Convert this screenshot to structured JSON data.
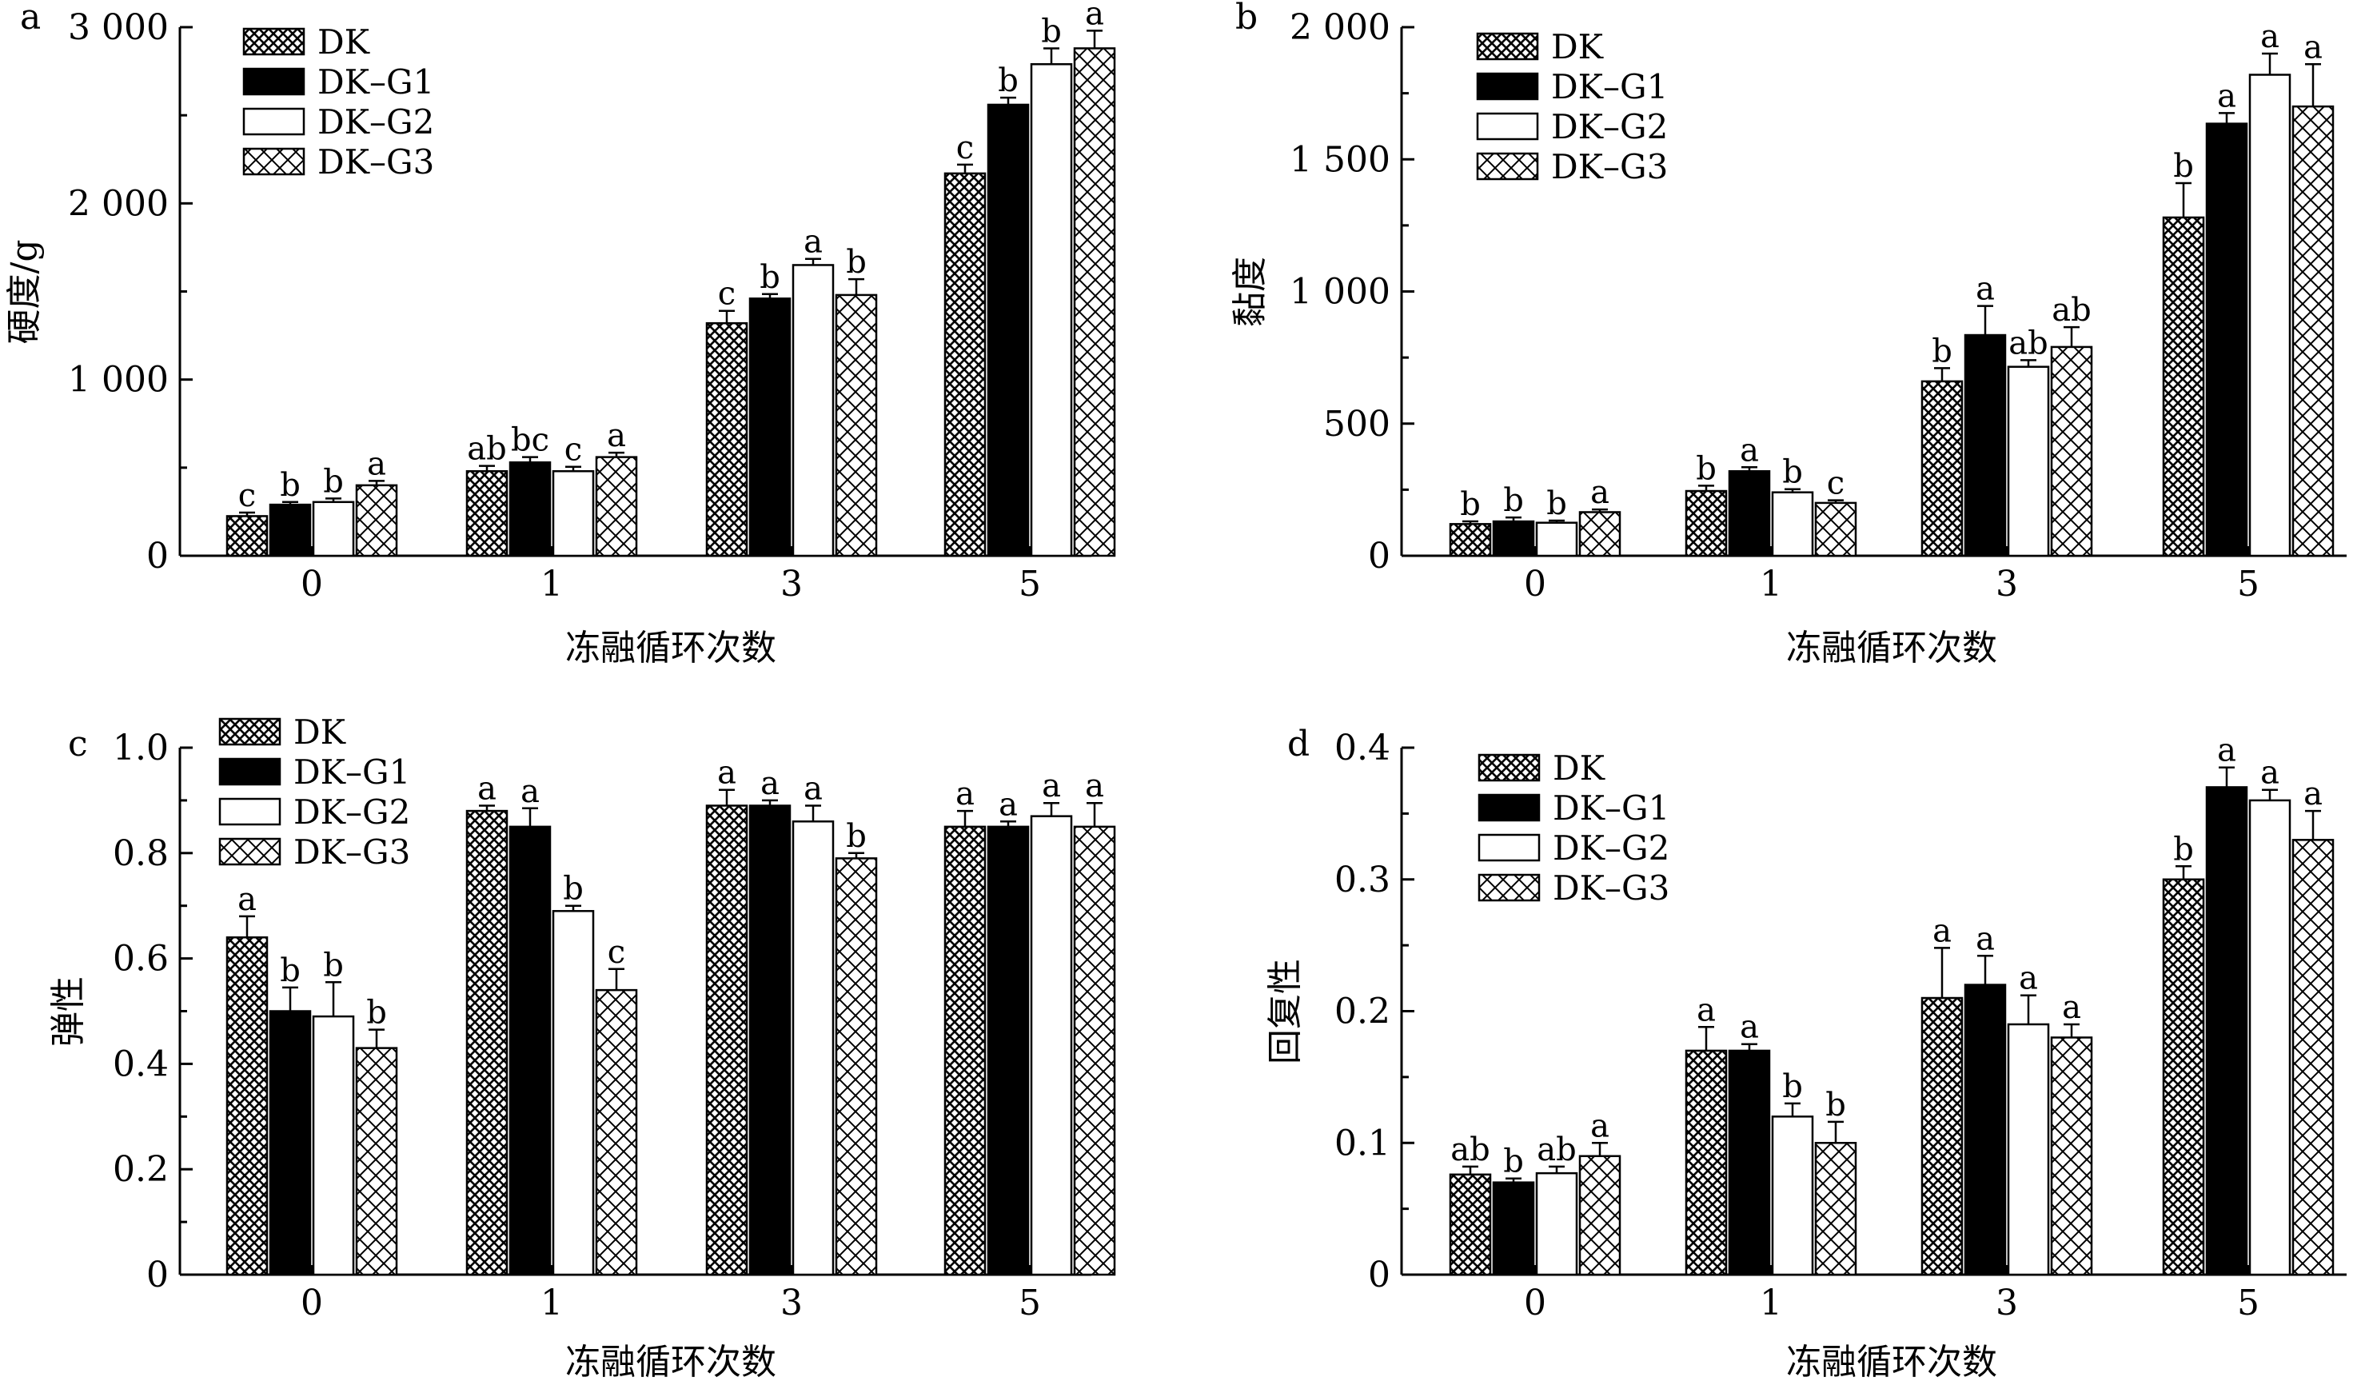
{
  "legend": [
    "DK",
    "DK–G1",
    "DK–G2",
    "DK–G3"
  ],
  "series_colors": {
    "black": "#000000",
    "white": "#ffffff"
  },
  "chart_data": [
    {
      "panel": "a",
      "type": "bar",
      "categories": [
        "0",
        "1",
        "3",
        "5"
      ],
      "xlabel": "冻融循环次数",
      "ylabel": "硬度/g",
      "ylim": [
        0,
        3000
      ],
      "yticks": [
        0,
        1000,
        2000,
        3000
      ],
      "ytick_labels": [
        "0",
        "1 000",
        "2 000",
        "3 000"
      ],
      "legend_position": "top-left",
      "series": [
        {
          "name": "DK",
          "values": [
            225,
            480,
            1320,
            2170
          ],
          "errors": [
            20,
            30,
            70,
            50
          ],
          "letters": [
            "c",
            "ab",
            "c",
            "c"
          ]
        },
        {
          "name": "DK–G1",
          "values": [
            290,
            530,
            1460,
            2560
          ],
          "errors": [
            15,
            30,
            25,
            40
          ],
          "letters": [
            "b",
            "bc",
            "b",
            "b"
          ]
        },
        {
          "name": "DK–G2",
          "values": [
            305,
            480,
            1650,
            2790
          ],
          "errors": [
            20,
            25,
            35,
            90
          ],
          "letters": [
            "b",
            "c",
            "a",
            "b"
          ]
        },
        {
          "name": "DK–G3",
          "values": [
            400,
            560,
            1480,
            2880
          ],
          "errors": [
            25,
            25,
            90,
            100
          ],
          "letters": [
            "a",
            "a",
            "b",
            "a"
          ]
        }
      ]
    },
    {
      "panel": "b",
      "type": "bar",
      "categories": [
        "0",
        "1",
        "3",
        "5"
      ],
      "xlabel": "冻融循环次数",
      "ylabel": "黏度",
      "ylim": [
        0,
        2000
      ],
      "yticks": [
        0,
        500,
        1000,
        1500,
        2000
      ],
      "ytick_labels": [
        "0",
        "500",
        "1 000",
        "1 500",
        "2 000"
      ],
      "legend_position": "top-left",
      "series": [
        {
          "name": "DK",
          "values": [
            120,
            245,
            660,
            1280
          ],
          "errors": [
            10,
            20,
            50,
            130
          ],
          "letters": [
            "b",
            "b",
            "b",
            "b"
          ]
        },
        {
          "name": "DK–G1",
          "values": [
            130,
            320,
            835,
            1635
          ],
          "errors": [
            15,
            15,
            110,
            40
          ],
          "letters": [
            "b",
            "a",
            "a",
            "a"
          ]
        },
        {
          "name": "DK–G2",
          "values": [
            125,
            240,
            715,
            1820
          ],
          "errors": [
            8,
            12,
            25,
            80
          ],
          "letters": [
            "b",
            "b",
            "ab",
            "a"
          ]
        },
        {
          "name": "DK–G3",
          "values": [
            165,
            200,
            790,
            1700
          ],
          "errors": [
            10,
            10,
            75,
            160
          ],
          "letters": [
            "a",
            "c",
            "ab",
            "a"
          ]
        }
      ]
    },
    {
      "panel": "c",
      "type": "bar",
      "categories": [
        "0",
        "1",
        "3",
        "5"
      ],
      "xlabel": "冻融循环次数",
      "ylabel": "弹性",
      "ylim": [
        0,
        1.0
      ],
      "yticks": [
        0,
        0.2,
        0.4,
        0.6,
        0.8,
        1.0
      ],
      "ytick_labels": [
        "0",
        "0.2",
        "0.4",
        "0.6",
        "0.8",
        "1.0"
      ],
      "legend_position": "top-left",
      "series": [
        {
          "name": "DK",
          "values": [
            0.64,
            0.88,
            0.89,
            0.85
          ],
          "errors": [
            0.04,
            0.01,
            0.03,
            0.03
          ],
          "letters": [
            "a",
            "a",
            "a",
            "a"
          ]
        },
        {
          "name": "DK–G1",
          "values": [
            0.5,
            0.85,
            0.89,
            0.85
          ],
          "errors": [
            0.045,
            0.035,
            0.01,
            0.01
          ],
          "letters": [
            "b",
            "a",
            "a",
            "a"
          ]
        },
        {
          "name": "DK–G2",
          "values": [
            0.49,
            0.69,
            0.86,
            0.87
          ],
          "errors": [
            0.065,
            0.01,
            0.03,
            0.025
          ],
          "letters": [
            "b",
            "b",
            "a",
            "a"
          ]
        },
        {
          "name": "DK–G3",
          "values": [
            0.43,
            0.54,
            0.79,
            0.85
          ],
          "errors": [
            0.035,
            0.04,
            0.01,
            0.045
          ],
          "letters": [
            "b",
            "c",
            "b",
            "a"
          ]
        }
      ]
    },
    {
      "panel": "d",
      "type": "bar",
      "categories": [
        "0",
        "1",
        "3",
        "5"
      ],
      "xlabel": "冻融循环次数",
      "ylabel": "回复性",
      "ylim": [
        0,
        0.4
      ],
      "yticks": [
        0,
        0.1,
        0.2,
        0.3,
        0.4
      ],
      "ytick_labels": [
        "0",
        "0.1",
        "0.2",
        "0.3",
        "0.4"
      ],
      "legend_position": "top-left",
      "series": [
        {
          "name": "DK",
          "values": [
            0.076,
            0.17,
            0.21,
            0.3
          ],
          "errors": [
            0.006,
            0.018,
            0.038,
            0.01
          ],
          "letters": [
            "ab",
            "a",
            "a",
            "b"
          ]
        },
        {
          "name": "DK–G1",
          "values": [
            0.07,
            0.17,
            0.22,
            0.37
          ],
          "errors": [
            0.003,
            0.005,
            0.022,
            0.015
          ],
          "letters": [
            "b",
            "a",
            "a",
            "a"
          ]
        },
        {
          "name": "DK–G2",
          "values": [
            0.077,
            0.12,
            0.19,
            0.36
          ],
          "errors": [
            0.005,
            0.01,
            0.022,
            0.008
          ],
          "letters": [
            "ab",
            "b",
            "a",
            "a"
          ]
        },
        {
          "name": "DK–G3",
          "values": [
            0.09,
            0.1,
            0.18,
            0.33
          ],
          "errors": [
            0.01,
            0.016,
            0.01,
            0.022
          ],
          "letters": [
            "a",
            "b",
            "a",
            "a"
          ]
        }
      ]
    }
  ]
}
